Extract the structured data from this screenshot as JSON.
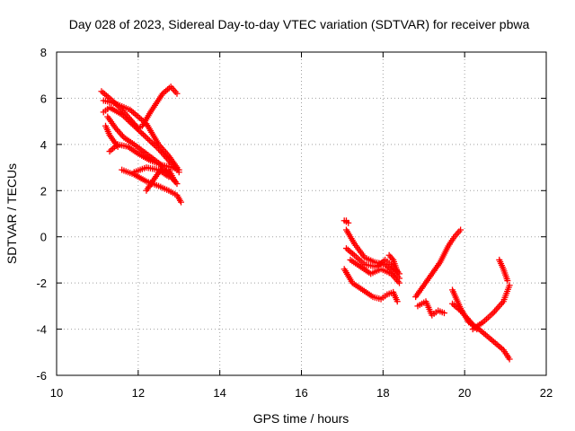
{
  "chart_data": {
    "type": "scatter",
    "title": "Day 028 of 2023, Sidereal Day-to-day VTEC variation (SDTVAR) for receiver pbwa",
    "xlabel": "GPS time / hours",
    "ylabel": "SDTVAR / TECUs",
    "xlim": [
      10,
      22
    ],
    "ylim": [
      -6,
      8
    ],
    "xticks": [
      "10",
      "12",
      "14",
      "16",
      "18",
      "20",
      "22"
    ],
    "yticks": [
      "-6",
      "-4",
      "-2",
      "0",
      "2",
      "4",
      "6",
      "8"
    ],
    "grid": true,
    "marker": "+",
    "color": "#ff0000",
    "series": [
      {
        "x": [
          11.1,
          11.3,
          11.55,
          11.8,
          12.0,
          12.1,
          12.3,
          12.6,
          12.8,
          12.95
        ],
        "y": [
          6.3,
          6.0,
          5.6,
          5.1,
          4.7,
          4.8,
          5.4,
          6.2,
          6.5,
          6.2
        ]
      },
      {
        "x": [
          11.15,
          11.4,
          11.8,
          12.2,
          12.5,
          12.75,
          12.95,
          13.0
        ],
        "y": [
          5.9,
          5.8,
          5.5,
          4.9,
          4.0,
          3.5,
          3.0,
          2.8
        ]
      },
      {
        "x": [
          11.15,
          11.3,
          11.6,
          11.9,
          12.2,
          12.5,
          12.8,
          12.95
        ],
        "y": [
          5.4,
          5.6,
          5.3,
          4.8,
          4.3,
          3.8,
          3.2,
          2.9
        ]
      },
      {
        "x": [
          11.25,
          11.45,
          11.65,
          11.9,
          12.2,
          12.5,
          12.75,
          12.95
        ],
        "y": [
          5.2,
          4.7,
          4.3,
          4.0,
          3.6,
          3.2,
          2.7,
          2.3
        ]
      },
      {
        "x": [
          11.2,
          11.3,
          11.5
        ],
        "y": [
          4.8,
          4.4,
          3.9
        ]
      },
      {
        "x": [
          11.3,
          11.5,
          11.75,
          12.0,
          12.3,
          12.6,
          12.85,
          13.0
        ],
        "y": [
          3.7,
          4.0,
          3.9,
          3.6,
          3.3,
          3.1,
          3.0,
          2.9
        ]
      },
      {
        "x": [
          11.6,
          11.9,
          12.2,
          12.5,
          12.75,
          12.95,
          13.05
        ],
        "y": [
          2.9,
          2.7,
          2.4,
          2.2,
          2.0,
          1.8,
          1.5
        ]
      },
      {
        "x": [
          12.2,
          12.35,
          12.55,
          12.75,
          12.9
        ],
        "y": [
          2.0,
          2.4,
          2.9,
          2.9,
          2.4
        ]
      },
      {
        "x": [
          11.9,
          12.2,
          12.5,
          12.75
        ],
        "y": [
          2.8,
          3.0,
          2.9,
          2.6
        ]
      },
      {
        "x": [
          17.05,
          17.15,
          17.1
        ],
        "y": [
          0.7,
          0.6,
          0.7
        ]
      },
      {
        "x": [
          17.1,
          17.3,
          17.55,
          17.8,
          18.05,
          18.25,
          18.4
        ],
        "y": [
          0.3,
          -0.3,
          -0.9,
          -1.1,
          -1.2,
          -1.5,
          -1.8
        ]
      },
      {
        "x": [
          17.1,
          17.3,
          17.55,
          17.85,
          18.05,
          18.2,
          18.4
        ],
        "y": [
          -0.5,
          -0.8,
          -1.2,
          -1.3,
          -1.0,
          -1.2,
          -1.6
        ]
      },
      {
        "x": [
          17.2,
          17.45,
          17.7,
          17.95,
          18.2,
          18.4
        ],
        "y": [
          -1.0,
          -1.3,
          -1.6,
          -1.4,
          -1.6,
          -2.0
        ]
      },
      {
        "x": [
          18.15,
          18.25,
          18.35
        ],
        "y": [
          -0.8,
          -1.0,
          -1.5
        ]
      },
      {
        "x": [
          17.05,
          17.25,
          17.5,
          17.75,
          17.95,
          18.1,
          18.25,
          18.35
        ],
        "y": [
          -1.4,
          -2.0,
          -2.3,
          -2.6,
          -2.7,
          -2.5,
          -2.4,
          -2.8
        ]
      },
      {
        "x": [
          18.8,
          19.0,
          19.2,
          19.4,
          19.6,
          19.75,
          19.9
        ],
        "y": [
          -2.6,
          -2.1,
          -1.6,
          -1.1,
          -0.4,
          0.0,
          0.3
        ]
      },
      {
        "x": [
          18.85,
          19.05,
          19.2,
          19.35,
          19.5
        ],
        "y": [
          -3.0,
          -2.8,
          -3.4,
          -3.2,
          -3.3
        ]
      },
      {
        "x": [
          19.7,
          19.9,
          20.1,
          20.35,
          20.55,
          20.75,
          20.95,
          21.1
        ],
        "y": [
          -2.3,
          -3.1,
          -3.7,
          -4.0,
          -4.3,
          -4.6,
          -4.9,
          -5.3
        ]
      },
      {
        "x": [
          19.7,
          19.9,
          20.1,
          20.3
        ],
        "y": [
          -2.9,
          -3.2,
          -3.6,
          -4.0
        ]
      },
      {
        "x": [
          20.2,
          20.45,
          20.7,
          20.95,
          21.1
        ],
        "y": [
          -4.0,
          -3.7,
          -3.3,
          -2.8,
          -2.1
        ]
      },
      {
        "x": [
          20.85,
          20.95,
          21.05
        ],
        "y": [
          -1.0,
          -1.4,
          -1.9
        ]
      }
    ]
  }
}
